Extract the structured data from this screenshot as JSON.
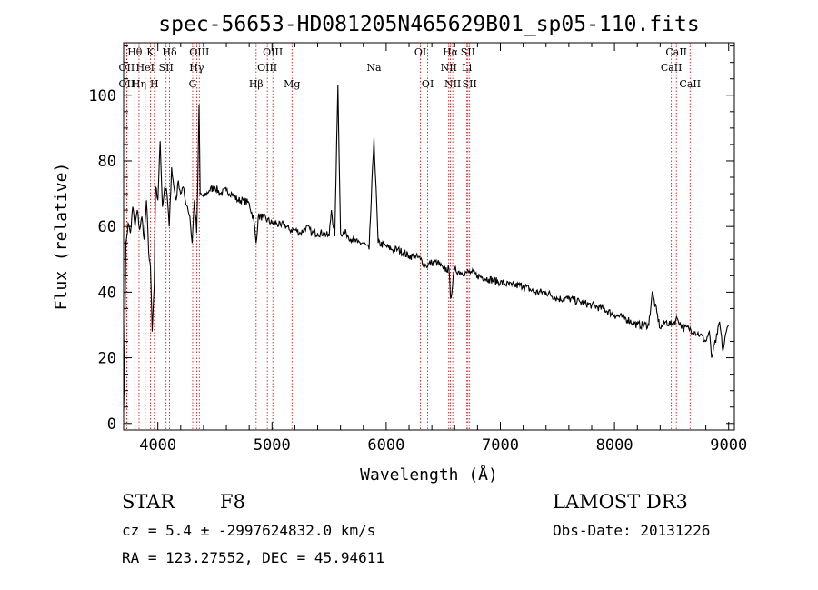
{
  "chart_data": {
    "type": "line",
    "title": "spec-56653-HD081205N465629B01_sp05-110.fits",
    "xlabel": "Wavelength (Å)",
    "ylabel": "Flux (relative)",
    "xlim": [
      3700,
      9050
    ],
    "ylim": [
      -2,
      116
    ],
    "x_ticks": [
      4000,
      5000,
      6000,
      7000,
      8000,
      9000
    ],
    "y_ticks": [
      0,
      20,
      40,
      60,
      80,
      100
    ],
    "grid": false,
    "series": [
      {
        "name": "spectrum",
        "x": [
          3700,
          3705,
          3720,
          3740,
          3760,
          3780,
          3800,
          3820,
          3840,
          3860,
          3880,
          3900,
          3920,
          3935,
          3950,
          3968,
          3980,
          4000,
          4020,
          4040,
          4060,
          4080,
          4100,
          4120,
          4140,
          4160,
          4180,
          4200,
          4220,
          4240,
          4260,
          4280,
          4300,
          4320,
          4340,
          4350,
          4361,
          4370,
          4400,
          4450,
          4500,
          4550,
          4600,
          4650,
          4700,
          4750,
          4800,
          4840,
          4861,
          4880,
          4920,
          4960,
          5000,
          5040,
          5080,
          5100,
          5150,
          5200,
          5250,
          5300,
          5350,
          5400,
          5450,
          5500,
          5520,
          5550,
          5577,
          5600,
          5650,
          5700,
          5750,
          5800,
          5850,
          5893,
          5930,
          6000,
          6050,
          6100,
          6200,
          6250,
          6300,
          6350,
          6400,
          6450,
          6500,
          6550,
          6563,
          6600,
          6650,
          6700,
          6750,
          6800,
          6900,
          7000,
          7100,
          7200,
          7300,
          7400,
          7500,
          7600,
          7700,
          7800,
          7900,
          8000,
          8100,
          8200,
          8300,
          8330,
          8400,
          8450,
          8500,
          8550,
          8600,
          8650,
          8700,
          8750,
          8800,
          8830,
          8850,
          8900,
          8920,
          8950,
          8980,
          9000
        ],
        "values": [
          4,
          12,
          55,
          61,
          58,
          66,
          60,
          65,
          59,
          63,
          56,
          68,
          52,
          48,
          28,
          42,
          72,
          68,
          86,
          66,
          72,
          70,
          60,
          78,
          72,
          68,
          74,
          70,
          72,
          68,
          66,
          63,
          55,
          68,
          58,
          74,
          97,
          70,
          69,
          71,
          72,
          70,
          71,
          70,
          68,
          68,
          67,
          62,
          55,
          63,
          63,
          62,
          61,
          61,
          60,
          61,
          59,
          59,
          58,
          60,
          58,
          58,
          58,
          57,
          65,
          57,
          103,
          58,
          58,
          56,
          55,
          55,
          53,
          87,
          55,
          54,
          53,
          53,
          51,
          51,
          50,
          48,
          49,
          49,
          47,
          47,
          38,
          47,
          46,
          46,
          46,
          45,
          44,
          43,
          42,
          42,
          40,
          40,
          38,
          38,
          37,
          36,
          35,
          33,
          32,
          30,
          30,
          40,
          29,
          31,
          30,
          32,
          29,
          29,
          28,
          27,
          25,
          28,
          20,
          27,
          31,
          22,
          28,
          30
        ]
      }
    ],
    "line_markers": [
      {
        "label": "Hθ",
        "x": 3798,
        "row": 1
      },
      {
        "label": "K",
        "x": 3934,
        "row": 1
      },
      {
        "label": "Hδ",
        "x": 4102,
        "row": 1
      },
      {
        "label": "OII",
        "x": 3727,
        "row": 2
      },
      {
        "label": "HeI",
        "x": 3889,
        "row": 2
      },
      {
        "label": "SII",
        "x": 4072,
        "row": 2
      },
      {
        "label": "OIII",
        "x": 4363,
        "row": 1
      },
      {
        "label": "Hγ",
        "x": 4340,
        "row": 2
      },
      {
        "label": "OII",
        "x": 3727,
        "row": 3
      },
      {
        "label": "Hη",
        "x": 3835,
        "row": 3
      },
      {
        "label": "H",
        "x": 3969,
        "row": 3
      },
      {
        "label": "G",
        "x": 4305,
        "row": 3
      },
      {
        "label": "OIII",
        "x": 5007,
        "row": 1
      },
      {
        "label": "OIII",
        "x": 4959,
        "row": 2
      },
      {
        "label": "Hβ",
        "x": 4861,
        "row": 3
      },
      {
        "label": "Mg",
        "x": 5175,
        "row": 3
      },
      {
        "label": "Na",
        "x": 5893,
        "row": 2
      },
      {
        "label": "OI",
        "x": 6300,
        "row": 1
      },
      {
        "label": "OI",
        "x": 6364,
        "row": 3
      },
      {
        "label": "Hα",
        "x": 6563,
        "row": 1
      },
      {
        "label": "SII",
        "x": 6716,
        "row": 1
      },
      {
        "label": "NII",
        "x": 6548,
        "row": 2
      },
      {
        "label": "Li",
        "x": 6707,
        "row": 2
      },
      {
        "label": "NII",
        "x": 6583,
        "row": 3
      },
      {
        "label": "SII",
        "x": 6731,
        "row": 3
      },
      {
        "label": "CaII",
        "x": 8542,
        "row": 1
      },
      {
        "label": "CaII",
        "x": 8498,
        "row": 2
      },
      {
        "label": "CaII",
        "x": 8662,
        "row": 3
      }
    ]
  },
  "info": {
    "object_class": "STAR",
    "subclass": "F8",
    "survey": "LAMOST DR3",
    "redshift_line": "cz = 5.4 ± -2997624832.0 km/s",
    "obs_date_line": "Obs-Date: 20131226",
    "coords_line": "RA = 123.27552, DEC =  45.94611"
  },
  "colors": {
    "spectrum": "#000000",
    "marker_lines": "#cc0000",
    "axes": "#000000"
  }
}
